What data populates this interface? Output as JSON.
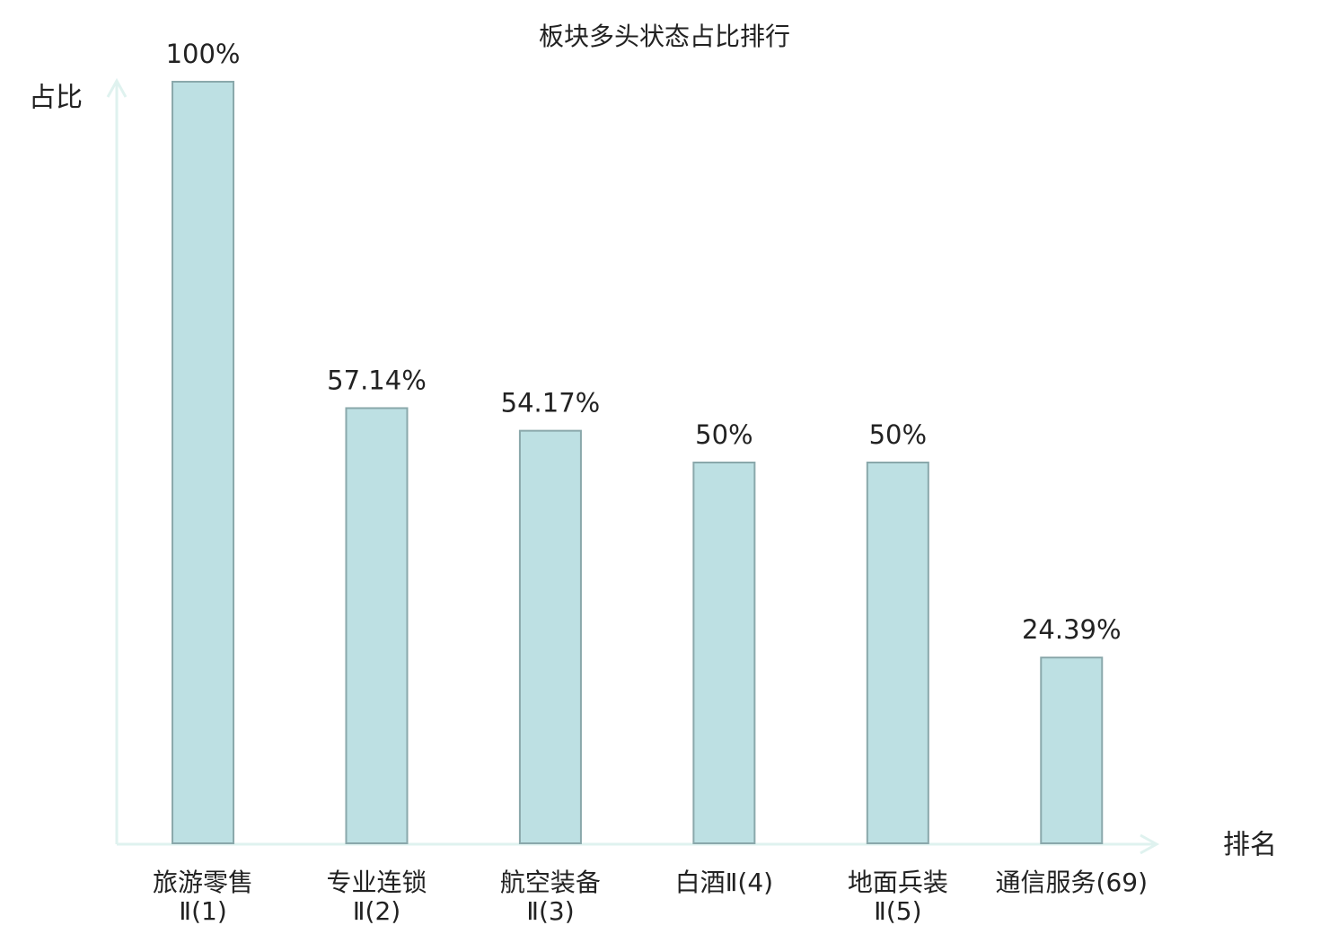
{
  "chart_data": {
    "type": "bar",
    "title": "板块多头状态占比排行",
    "y_label": "占比",
    "x_label": "排名",
    "categories": [
      [
        "旅游零售",
        "Ⅱ(1)"
      ],
      [
        "专业连锁",
        "Ⅱ(2)"
      ],
      [
        "航空装备",
        "Ⅱ(3)"
      ],
      [
        "白酒Ⅱ(4)"
      ],
      [
        "地面兵装",
        "Ⅱ(5)"
      ],
      [
        "通信服务(69)"
      ]
    ],
    "label_colors": [
      "#111111",
      "#111111",
      "#111111",
      "#111111",
      "#111111",
      "#e41a1c"
    ],
    "values": [
      100,
      57.14,
      54.17,
      50,
      50,
      24.39
    ],
    "value_labels": [
      "100%",
      "57.14%",
      "54.17%",
      "50%",
      "50%",
      "24.39%"
    ],
    "color": "#bde0e3",
    "edge_color": "#8aa8ab",
    "ylim": [
      0,
      100
    ]
  }
}
